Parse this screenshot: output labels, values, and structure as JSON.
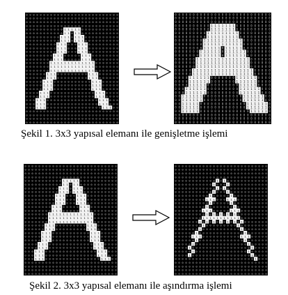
{
  "figures": [
    {
      "caption": "Şekil 1. 3x3 yapısal elemanı ile  genişletme işlemi",
      "input_label": "1",
      "output_label": "1",
      "background_label": "0",
      "input_shape": "letter-A",
      "output_shape": "letter-A-dilated",
      "operation": "dilation"
    },
    {
      "caption": "Şekil 2. 3x3 yapısal elemanı ile aşındırma işlemi",
      "input_label": "1",
      "output_label": "1",
      "background_label": "0",
      "input_shape": "letter-A",
      "output_shape": "letter-A-eroded",
      "operation": "erosion"
    }
  ],
  "colors": {
    "background_grid": "#000000",
    "background_digit": "#bdbdbd",
    "foreground_cell": "#f2f2f2",
    "foreground_digit": "#000000"
  },
  "icons": {
    "arrow": "right-arrow-icon"
  }
}
